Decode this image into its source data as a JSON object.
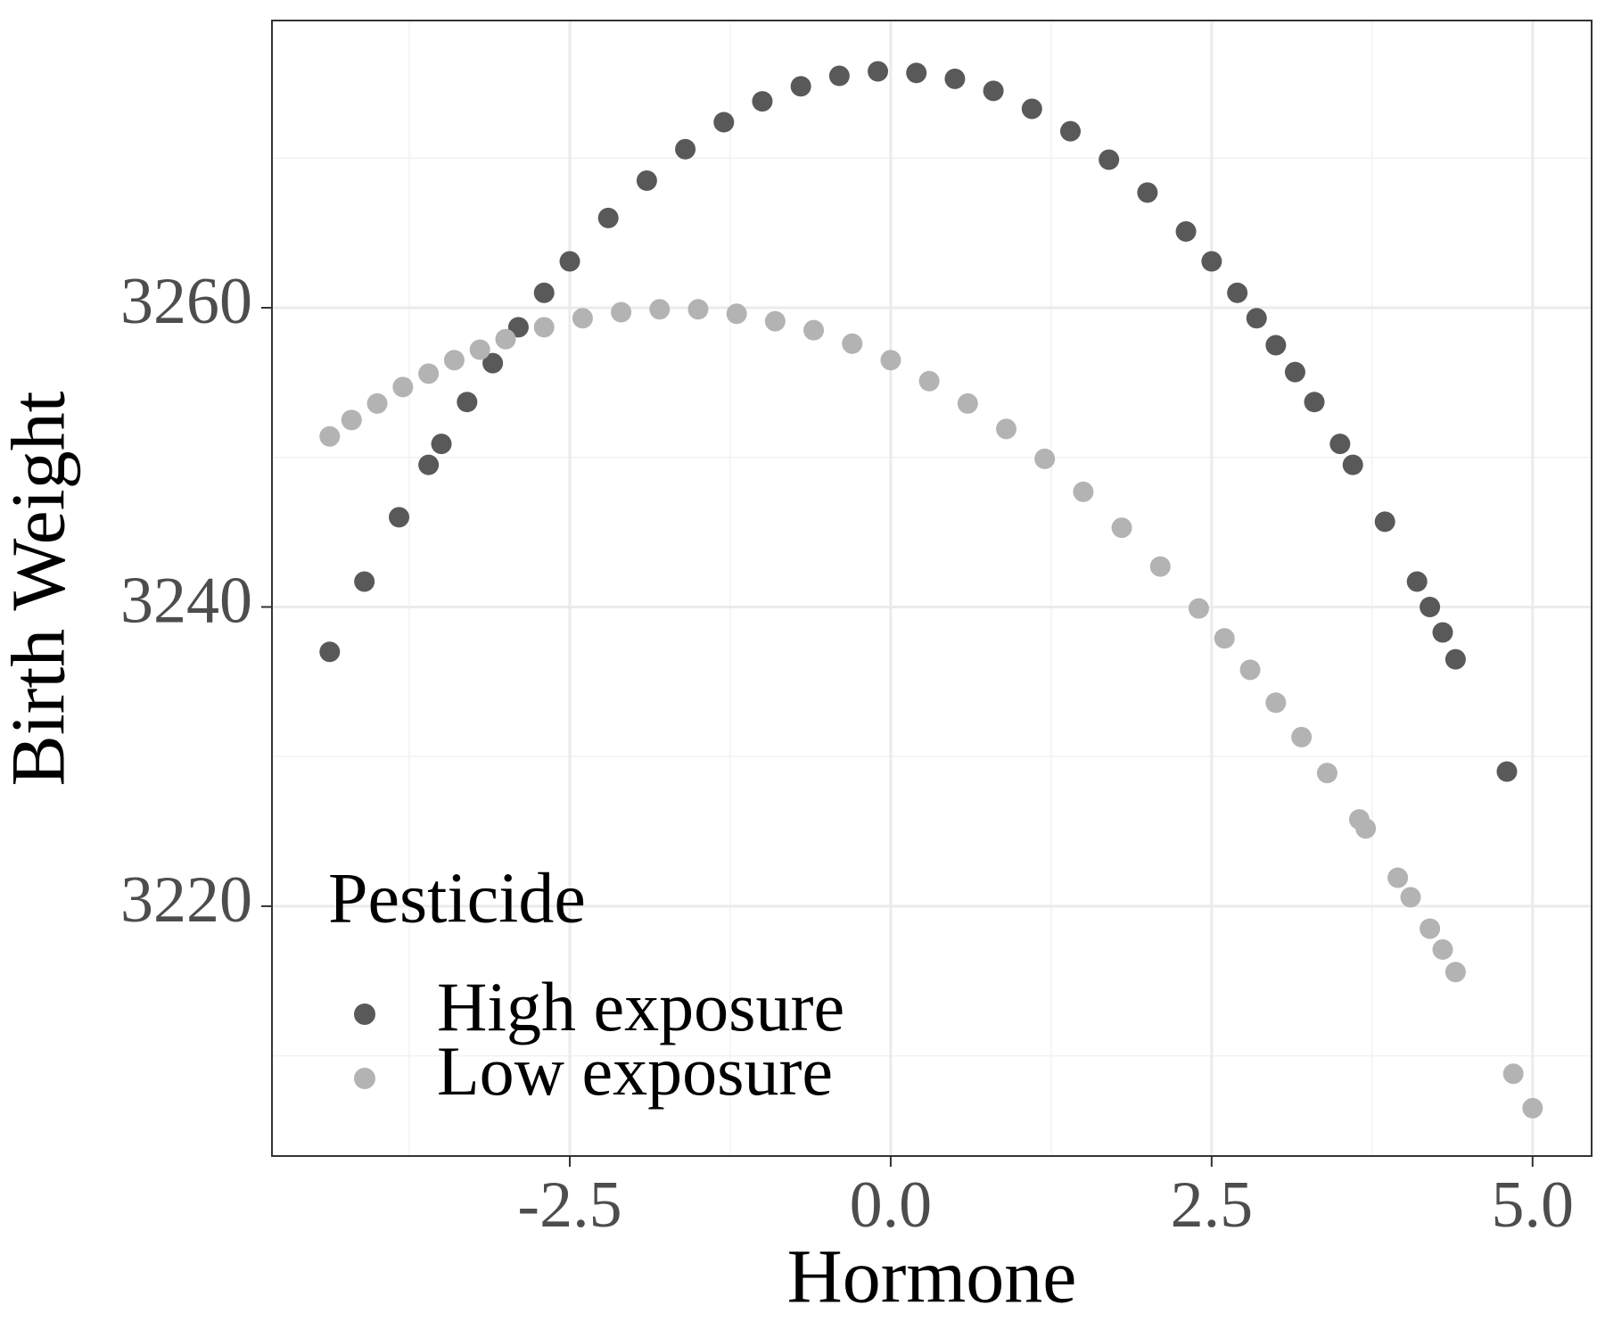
{
  "chart_data": {
    "type": "scatter",
    "x_label": "Hormone",
    "y_label": "Birth Weight",
    "legend_title": "Pesticide",
    "legend_position": "bottom-left",
    "grid": true,
    "xlim": [
      -4.82,
      5.46
    ],
    "ylim": [
      3203.3,
      3279.2
    ],
    "xticks": [
      -2.5,
      {
        "value": 0,
        "label": "0.0"
      },
      2.5,
      {
        "value": 5,
        "label": "5.0"
      }
    ],
    "yticks": [
      3220,
      3240,
      3260
    ],
    "minor_xticks": [
      -3.75,
      -1.25,
      1.25,
      3.75
    ],
    "minor_yticks": [
      3210,
      3230,
      3250,
      3270
    ],
    "series": [
      {
        "name": "High exposure",
        "color": "#595959",
        "x": [
          -4.37,
          -4.1,
          -3.83,
          -3.6,
          -3.5,
          -3.3,
          -3.1,
          -2.9,
          -2.7,
          -2.5,
          -2.2,
          -1.9,
          -1.6,
          -1.3,
          -1.0,
          -0.7,
          -0.4,
          -0.1,
          0.2,
          0.5,
          0.8,
          1.1,
          1.4,
          1.7,
          2.0,
          2.3,
          2.5,
          2.7,
          2.85,
          3.0,
          3.15,
          3.3,
          3.5,
          3.6,
          3.85,
          4.1,
          4.2,
          4.3,
          4.4,
          4.8
        ],
        "values": [
          3237.0,
          3241.7,
          3246.0,
          3249.5,
          3250.9,
          3253.7,
          3256.3,
          3258.7,
          3261.0,
          3263.1,
          3266.0,
          3268.5,
          3270.6,
          3272.4,
          3273.8,
          3274.8,
          3275.5,
          3275.8,
          3275.7,
          3275.3,
          3274.5,
          3273.3,
          3271.8,
          3269.9,
          3267.7,
          3265.1,
          3263.1,
          3261.0,
          3259.3,
          3257.5,
          3255.7,
          3253.7,
          3250.9,
          3249.5,
          3245.7,
          3241.7,
          3240.0,
          3238.3,
          3236.5,
          3229.0
        ]
      },
      {
        "name": "Low exposure",
        "color": "#b3b3b3",
        "x": [
          -4.37,
          -4.2,
          -4.0,
          -3.8,
          -3.6,
          -3.4,
          -3.2,
          -3.0,
          -2.7,
          -2.4,
          -2.1,
          -1.8,
          -1.5,
          -1.2,
          -0.9,
          -0.6,
          -0.3,
          0,
          0.3,
          0.6,
          0.9,
          1.2,
          1.5,
          1.8,
          2.1,
          2.4,
          2.6,
          2.8,
          3.0,
          3.2,
          3.4,
          3.65,
          3.7,
          3.95,
          4.05,
          4.2,
          4.3,
          4.4,
          4.85,
          5.0
        ],
        "values": [
          3251.4,
          3252.5,
          3253.6,
          3254.7,
          3255.6,
          3256.5,
          3257.2,
          3257.9,
          3258.7,
          3259.3,
          3259.7,
          3259.9,
          3259.9,
          3259.6,
          3259.1,
          3258.5,
          3257.6,
          3256.5,
          3255.1,
          3253.6,
          3251.9,
          3249.9,
          3247.7,
          3245.3,
          3242.7,
          3239.9,
          3237.9,
          3235.8,
          3233.6,
          3231.3,
          3228.9,
          3225.8,
          3225.2,
          3221.9,
          3220.6,
          3218.5,
          3217.1,
          3215.6,
          3208.8,
          3206.5
        ]
      }
    ]
  }
}
